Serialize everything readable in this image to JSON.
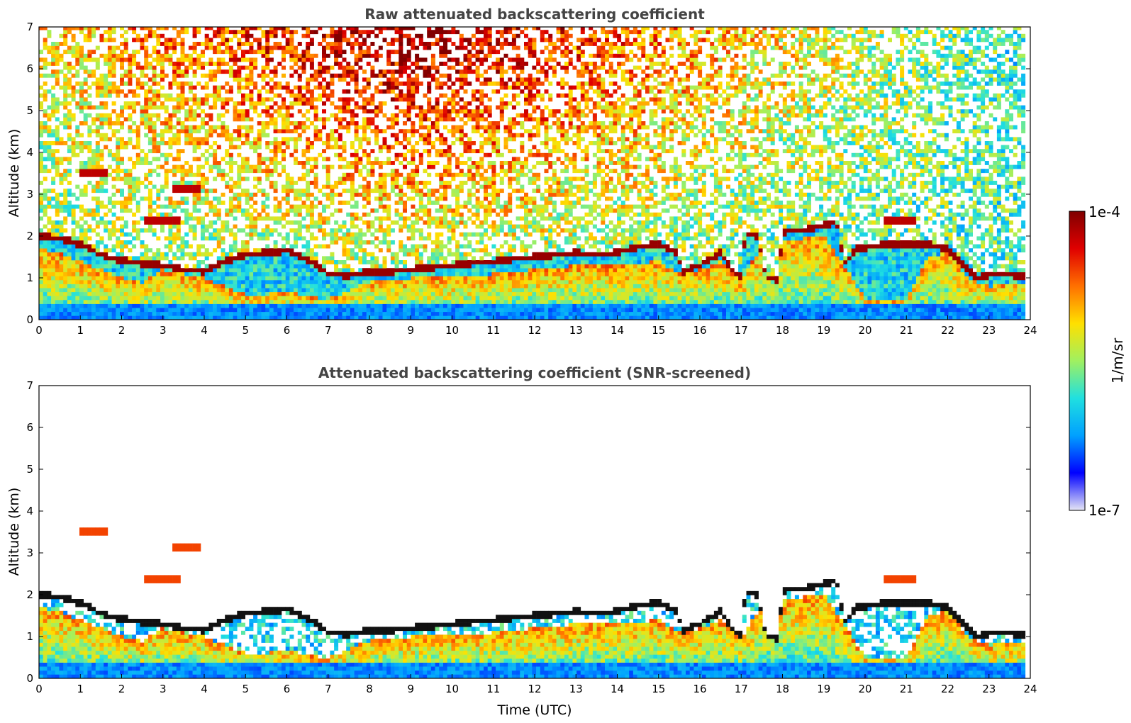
{
  "chart_data": [
    {
      "type": "heatmap",
      "title": "Raw attenuated backscattering coefficient",
      "xlabel": "",
      "ylabel": "Altitude (km)",
      "xlim": [
        0,
        24
      ],
      "ylim": [
        0,
        7
      ],
      "xticks": [
        0,
        1,
        2,
        3,
        4,
        5,
        6,
        7,
        8,
        9,
        10,
        11,
        12,
        13,
        14,
        15,
        16,
        17,
        18,
        19,
        20,
        21,
        22,
        23,
        24
      ],
      "yticks": [
        0,
        1,
        2,
        3,
        4,
        5,
        6,
        7
      ],
      "screened": false,
      "layer_top_km": [
        [
          0.0,
          2.0
        ],
        [
          0.5,
          1.95
        ],
        [
          1.0,
          1.8
        ],
        [
          1.5,
          1.55
        ],
        [
          2.0,
          1.42
        ],
        [
          2.5,
          1.35
        ],
        [
          3.0,
          1.3
        ],
        [
          3.5,
          1.2
        ],
        [
          4.0,
          1.15
        ],
        [
          4.5,
          1.4
        ],
        [
          5.0,
          1.55
        ],
        [
          5.5,
          1.6
        ],
        [
          6.0,
          1.65
        ],
        [
          6.5,
          1.45
        ],
        [
          7.0,
          1.1
        ],
        [
          7.5,
          1.05
        ],
        [
          8.0,
          1.15
        ],
        [
          8.5,
          1.15
        ],
        [
          9.0,
          1.2
        ],
        [
          9.5,
          1.25
        ],
        [
          10.0,
          1.3
        ],
        [
          10.5,
          1.35
        ],
        [
          11.0,
          1.4
        ],
        [
          11.5,
          1.45
        ],
        [
          12.0,
          1.5
        ],
        [
          12.5,
          1.55
        ],
        [
          13.0,
          1.6
        ],
        [
          13.5,
          1.55
        ],
        [
          14.0,
          1.6
        ],
        [
          14.5,
          1.75
        ],
        [
          15.0,
          1.8
        ],
        [
          15.4,
          1.65
        ],
        [
          15.6,
          1.15
        ],
        [
          16.0,
          1.3
        ],
        [
          16.5,
          1.6
        ],
        [
          16.8,
          1.15
        ],
        [
          17.0,
          1.05
        ],
        [
          17.1,
          2.05
        ],
        [
          17.4,
          2.0
        ],
        [
          17.6,
          1.0
        ],
        [
          17.9,
          0.95
        ],
        [
          18.0,
          2.1
        ],
        [
          18.5,
          2.15
        ],
        [
          19.0,
          2.25
        ],
        [
          19.3,
          2.35
        ],
        [
          19.5,
          1.35
        ],
        [
          19.8,
          1.7
        ],
        [
          20.5,
          1.8
        ],
        [
          21.0,
          1.8
        ],
        [
          21.5,
          1.8
        ],
        [
          22.0,
          1.7
        ],
        [
          22.3,
          1.4
        ],
        [
          22.7,
          1.0
        ],
        [
          23.2,
          1.1
        ],
        [
          23.8,
          1.05
        ]
      ],
      "aerosol_top_km": [
        [
          0.0,
          1.7
        ],
        [
          0.5,
          1.6
        ],
        [
          1.0,
          1.4
        ],
        [
          1.5,
          1.2
        ],
        [
          2.0,
          1.0
        ],
        [
          2.5,
          0.9
        ],
        [
          3.0,
          1.2
        ],
        [
          3.5,
          1.1
        ],
        [
          4.0,
          1.0
        ],
        [
          4.5,
          0.8
        ],
        [
          5.0,
          0.6
        ],
        [
          5.5,
          0.6
        ],
        [
          6.0,
          0.7
        ],
        [
          6.5,
          0.55
        ],
        [
          7.0,
          0.5
        ],
        [
          8.0,
          0.9
        ],
        [
          9.0,
          1.0
        ],
        [
          10.0,
          1.0
        ],
        [
          11.0,
          1.1
        ],
        [
          12.0,
          1.2
        ],
        [
          13.0,
          1.3
        ],
        [
          14.0,
          1.3
        ],
        [
          15.0,
          1.4
        ],
        [
          15.5,
          1.1
        ],
        [
          16.0,
          1.2
        ],
        [
          16.5,
          1.4
        ],
        [
          17.0,
          0.9
        ],
        [
          17.5,
          1.8
        ],
        [
          18.0,
          1.9
        ],
        [
          19.0,
          2.0
        ],
        [
          19.5,
          1.3
        ],
        [
          20.0,
          0.5
        ],
        [
          21.0,
          0.5
        ],
        [
          21.5,
          1.5
        ],
        [
          22.0,
          1.6
        ],
        [
          22.5,
          1.0
        ],
        [
          23.0,
          0.8
        ],
        [
          23.8,
          0.9
        ]
      ],
      "cloud_layers_km": [
        {
          "x": [
            1.0,
            1.7
          ],
          "alt": 3.5
        },
        {
          "x": [
            3.2,
            3.9
          ],
          "alt": 3.1
        },
        {
          "x": [
            2.5,
            3.4
          ],
          "alt": 2.4
        },
        {
          "x": [
            20.5,
            21.2
          ],
          "alt": 2.4
        }
      ]
    },
    {
      "type": "heatmap",
      "title": "Attenuated backscattering coefficient (SNR-screened)",
      "xlabel": "Time (UTC)",
      "ylabel": "Altitude (km)",
      "xlim": [
        0,
        24
      ],
      "ylim": [
        0,
        7
      ],
      "xticks": [
        0,
        1,
        2,
        3,
        4,
        5,
        6,
        7,
        8,
        9,
        10,
        11,
        12,
        13,
        14,
        15,
        16,
        17,
        18,
        19,
        20,
        21,
        22,
        23,
        24
      ],
      "yticks": [
        0,
        1,
        2,
        3,
        4,
        5,
        6,
        7
      ],
      "screened": true
    }
  ],
  "colorbar": {
    "label": "1/m/sr",
    "max_label": "1e-4",
    "min_label": "1e-7",
    "colors": [
      "#e6e6f5",
      "#0000ff",
      "#00a0ff",
      "#20e0e0",
      "#a0f060",
      "#ffe000",
      "#ff7000",
      "#e00000",
      "#800000"
    ]
  }
}
